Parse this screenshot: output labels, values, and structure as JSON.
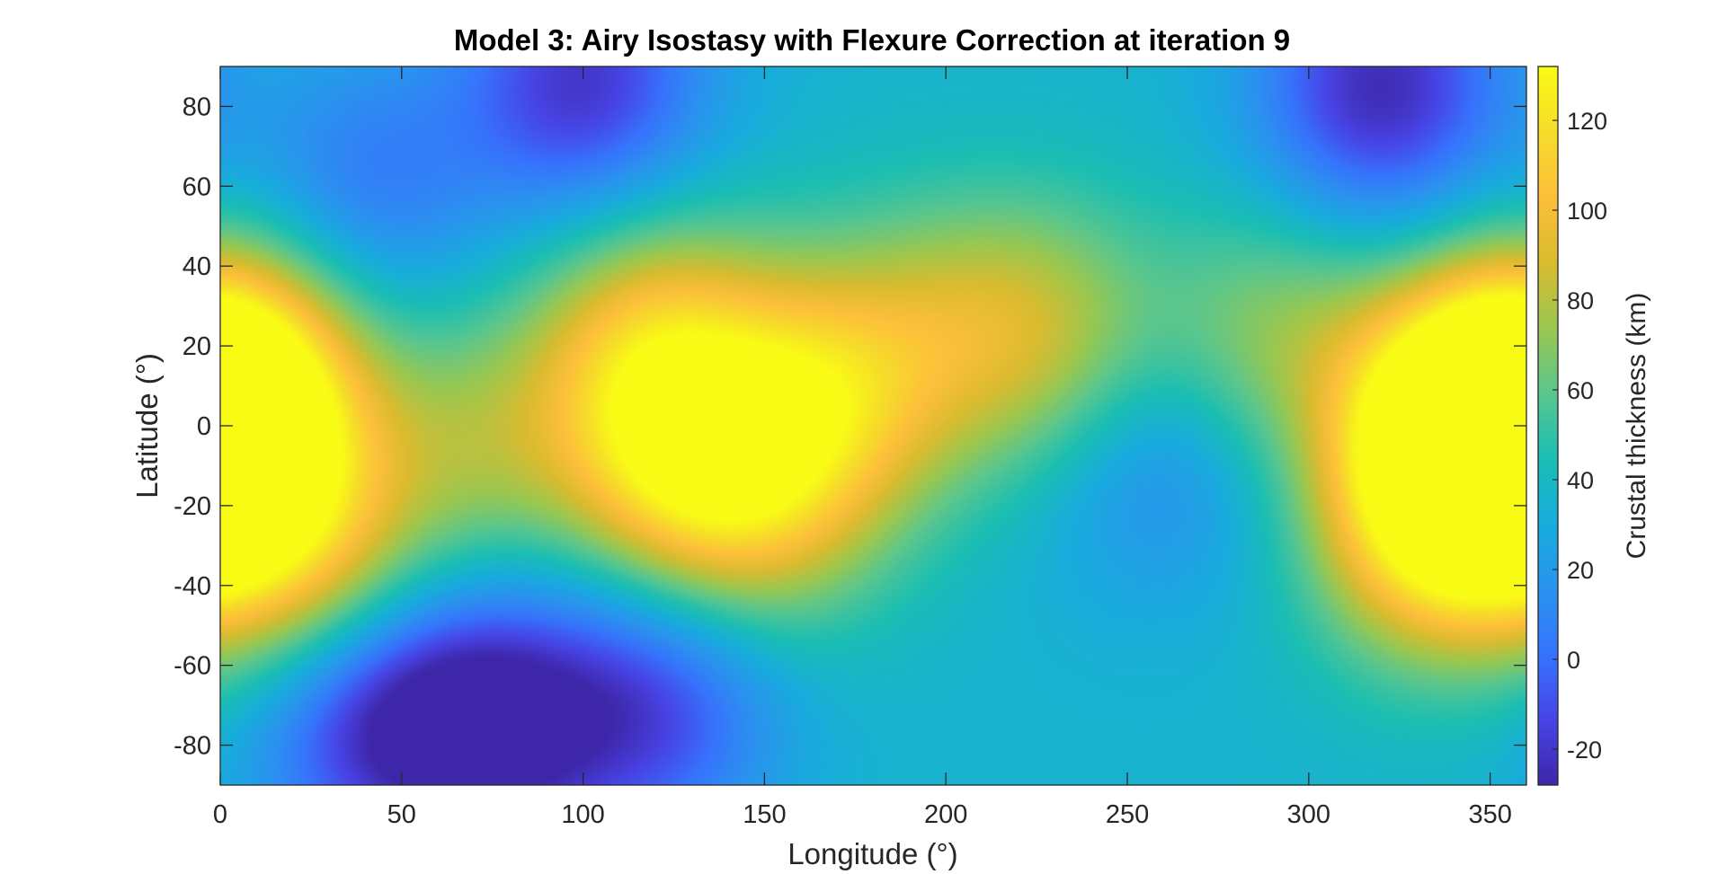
{
  "chart_data": {
    "type": "heatmap",
    "title": "Model 3: Airy Isostasy with Flexure Correction at iteration 9",
    "xlabel": "Longitude (°)",
    "ylabel": "Latitude (°)",
    "colorbar_label": "Crustal thickness (km)",
    "xlim": [
      0,
      360
    ],
    "ylim": [
      -90,
      90
    ],
    "clim": [
      -28,
      132
    ],
    "colormap": "parula",
    "colormap_stops": [
      "#3e26a8",
      "#4744e5",
      "#3673fc",
      "#2a93ee",
      "#17acdb",
      "#1bbeb3",
      "#5ac68d",
      "#9bc74f",
      "#d9bb2f",
      "#fdbf3b",
      "#f6dd29",
      "#f9fb15"
    ],
    "x_ticks": [
      0,
      50,
      100,
      150,
      200,
      250,
      300,
      350
    ],
    "y_ticks": [
      80,
      60,
      40,
      20,
      0,
      -20,
      -40,
      -60,
      -80
    ],
    "colorbar_ticks": [
      120,
      100,
      80,
      60,
      40,
      20,
      0,
      -20
    ],
    "grid": false,
    "background_level": 35,
    "features": [
      {
        "lon": 0,
        "lat": -5,
        "value": 112
      },
      {
        "lon": 8,
        "lat": 15,
        "value": 90
      },
      {
        "lon": 25,
        "lat": -35,
        "value": 88
      },
      {
        "lon": 70,
        "lat": -5,
        "value": 68
      },
      {
        "lon": 118,
        "lat": 22,
        "value": 88
      },
      {
        "lon": 128,
        "lat": -8,
        "value": 108
      },
      {
        "lon": 168,
        "lat": 8,
        "value": 95
      },
      {
        "lon": 150,
        "lat": -20,
        "value": 70
      },
      {
        "lon": 228,
        "lat": 22,
        "value": 75
      },
      {
        "lon": 200,
        "lat": 25,
        "value": 60
      },
      {
        "lon": 290,
        "lat": 20,
        "value": 72
      },
      {
        "lon": 345,
        "lat": 2,
        "value": 132
      },
      {
        "lon": 335,
        "lat": -25,
        "value": 110
      },
      {
        "lon": 75,
        "lat": -75,
        "value": -28
      },
      {
        "lon": 40,
        "lat": -72,
        "value": -15
      },
      {
        "lon": 120,
        "lat": -70,
        "value": -10
      },
      {
        "lon": 100,
        "lat": 85,
        "value": -20
      },
      {
        "lon": 320,
        "lat": 84,
        "value": -25
      },
      {
        "lon": 40,
        "lat": 60,
        "value": 5
      },
      {
        "lon": 258,
        "lat": -8,
        "value": 10
      },
      {
        "lon": 295,
        "lat": -8,
        "value": 30
      }
    ]
  }
}
